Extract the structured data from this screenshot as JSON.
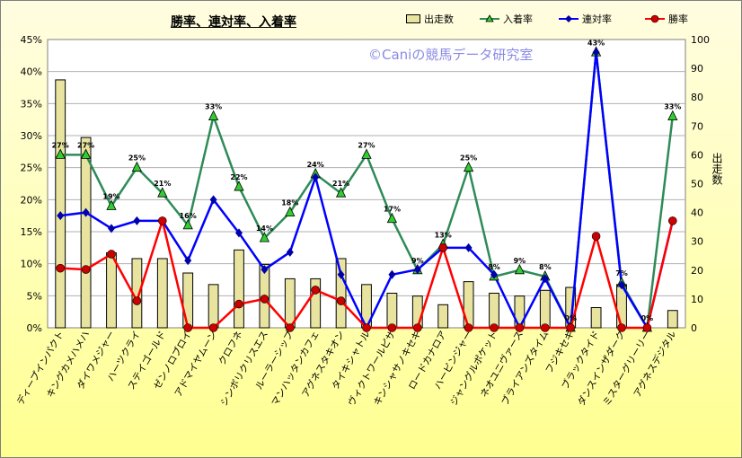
{
  "chart_data": {
    "type": "bar+line",
    "title": "勝率、連対率、入着率",
    "watermark": "©Caniの競馬データ研究室",
    "y_right_label": "出走数",
    "y_left_ticks": [
      "0%",
      "5%",
      "10%",
      "15%",
      "20%",
      "25%",
      "30%",
      "35%",
      "40%",
      "45%"
    ],
    "y_right_ticks": [
      "0",
      "10",
      "20",
      "30",
      "40",
      "50",
      "60",
      "70",
      "80",
      "90",
      "100"
    ],
    "ylim_left": [
      0,
      45
    ],
    "ylim_right": [
      0,
      100
    ],
    "categories": [
      "ディープインパクト",
      "キングカメハメハ",
      "ダイワメジャー",
      "ハーツクライ",
      "ステイゴールド",
      "ゼンノロブロイ",
      "アドマイヤムーン",
      "クロフネ",
      "シンボリクリスエス",
      "ルーラーシップ",
      "マンハッタンカフェ",
      "アグネスタキオン",
      "タイキシャトル",
      "ヴィクトワールピサ",
      "キンシャサノキセキ",
      "ロードカナロア",
      "ハービンジャー",
      "ジャングルポケット",
      "ネオユニヴァース",
      "ブライアンズタイム",
      "フジキセキ",
      "ブラックタイド",
      "ダンスインザダーク",
      "ミスターグリーリー",
      "アグネスデジタル"
    ],
    "series": [
      {
        "name": "出走数",
        "type": "bar",
        "axis": "right",
        "color": "#e8e4a0",
        "values": [
          86,
          66,
          26,
          24,
          24,
          19,
          15,
          27,
          22,
          17,
          17,
          24,
          15,
          12,
          11,
          8,
          16,
          12,
          11,
          13,
          14,
          7,
          15,
          0,
          6
        ]
      },
      {
        "name": "入着率",
        "type": "line",
        "axis": "left",
        "color": "#2e8b57",
        "marker": "triangle",
        "marker_color": "#33cc33",
        "values": [
          27,
          27,
          19,
          25,
          21,
          16,
          33,
          22,
          14,
          18,
          24,
          21,
          27,
          17,
          9,
          13,
          25,
          8,
          9,
          8,
          0,
          43,
          7,
          0,
          33
        ],
        "labels": [
          "27%",
          "27%",
          "19%",
          "25%",
          "21%",
          "16%",
          "33%",
          "22%",
          "14%",
          "18%",
          "24%",
          "21%",
          "27%",
          "17%",
          "9%",
          "13%",
          "25%",
          "8%",
          "9%",
          "8%",
          "0%",
          "43%",
          "7%",
          "0%",
          "33%"
        ],
        "labeled": [
          true,
          true,
          true,
          true,
          true,
          true,
          true,
          true,
          true,
          true,
          true,
          true,
          true,
          true,
          true,
          true,
          true,
          true,
          true,
          true,
          true,
          true,
          true,
          true,
          true
        ]
      },
      {
        "name": "連対率",
        "type": "line",
        "axis": "left",
        "color": "#0000ff",
        "marker": "diamond",
        "marker_color": "#0000aa",
        "values": [
          17.5,
          18,
          15.5,
          16.7,
          16.7,
          10.5,
          20,
          14.8,
          9.1,
          11.8,
          23.5,
          8.3,
          0,
          8.3,
          9.1,
          12.5,
          12.5,
          8.3,
          0,
          7.7,
          0,
          43,
          6.7,
          0,
          16.7
        ]
      },
      {
        "name": "勝率",
        "type": "line",
        "axis": "left",
        "color": "#ff0000",
        "marker": "circle",
        "marker_color": "#cc0000",
        "values": [
          9.3,
          9.1,
          11.5,
          4.2,
          16.7,
          0,
          0,
          3.7,
          4.5,
          0,
          5.9,
          4.2,
          0,
          0,
          0,
          12.5,
          0,
          0,
          0,
          0,
          0,
          14.3,
          0,
          0,
          16.7
        ]
      }
    ],
    "grid": "horizontal",
    "legend": "top-right"
  }
}
